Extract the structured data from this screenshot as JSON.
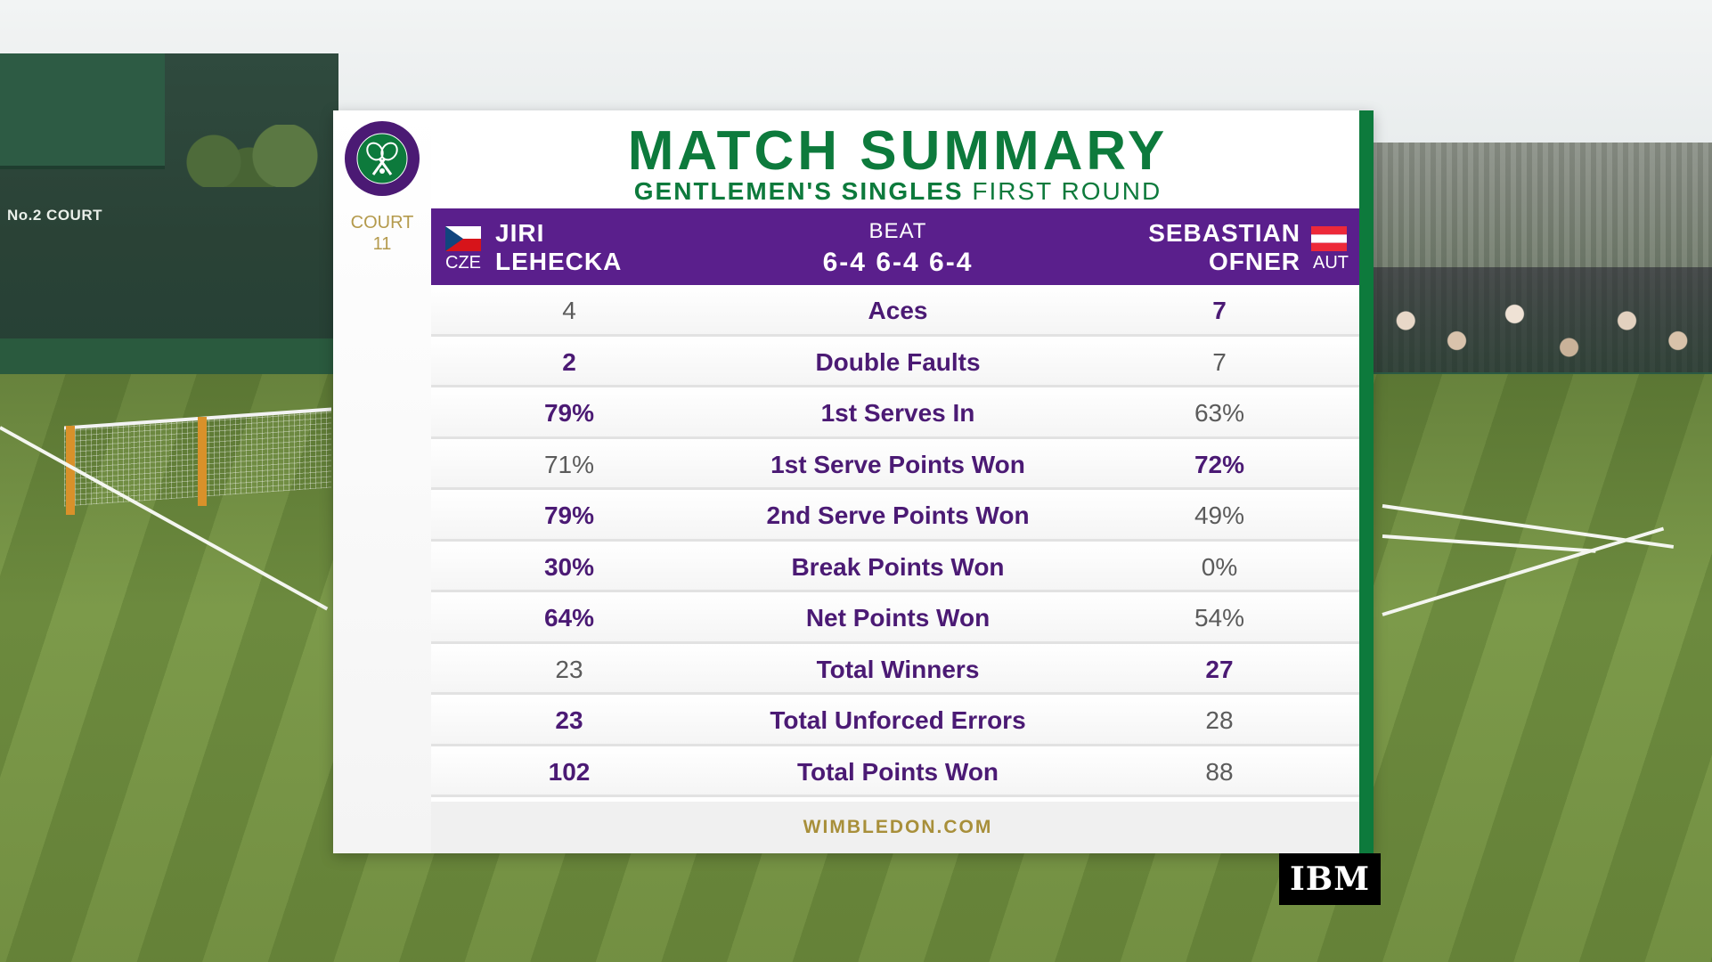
{
  "scene": {
    "court_sign": "No.2 COURT"
  },
  "panel": {
    "court_label": "COURT",
    "court_number": "11",
    "title": "MATCH SUMMARY",
    "subtitle_bold": "GENTLEMEN'S SINGLES",
    "subtitle_light": "FIRST ROUND",
    "player1": {
      "first": "JIRI",
      "last": "LEHECKA",
      "country": "CZE"
    },
    "player2": {
      "first": "SEBASTIAN",
      "last": "OFNER",
      "country": "AUT"
    },
    "result_word": "BEAT",
    "score": "6-4 6-4 6-4",
    "stats": [
      {
        "label": "Aces",
        "p1": "4",
        "p2": "7",
        "leader": "p2"
      },
      {
        "label": "Double Faults",
        "p1": "2",
        "p2": "7",
        "leader": "p1"
      },
      {
        "label": "1st Serves In",
        "p1": "79%",
        "p2": "63%",
        "leader": "p1"
      },
      {
        "label": "1st Serve Points Won",
        "p1": "71%",
        "p2": "72%",
        "leader": "p2"
      },
      {
        "label": "2nd Serve Points Won",
        "p1": "79%",
        "p2": "49%",
        "leader": "p1"
      },
      {
        "label": "Break Points Won",
        "p1": "30%",
        "p2": "0%",
        "leader": "p1"
      },
      {
        "label": "Net Points Won",
        "p1": "64%",
        "p2": "54%",
        "leader": "p1"
      },
      {
        "label": "Total Winners",
        "p1": "23",
        "p2": "27",
        "leader": "p2"
      },
      {
        "label": "Total Unforced Errors",
        "p1": "23",
        "p2": "28",
        "leader": "p1"
      },
      {
        "label": "Total Points Won",
        "p1": "102",
        "p2": "88",
        "leader": "p1"
      }
    ],
    "footer": "WIMBLEDON.COM"
  },
  "sponsor": "IBM",
  "colors": {
    "purple": "#5a1f8c",
    "green": "#0d7a3c",
    "gold": "#a88f3a"
  },
  "icons": {
    "logo": "wimbledon-crossed-rackets-icon",
    "flag_left": "czech-flag-icon",
    "flag_right": "austrian-flag-icon"
  }
}
